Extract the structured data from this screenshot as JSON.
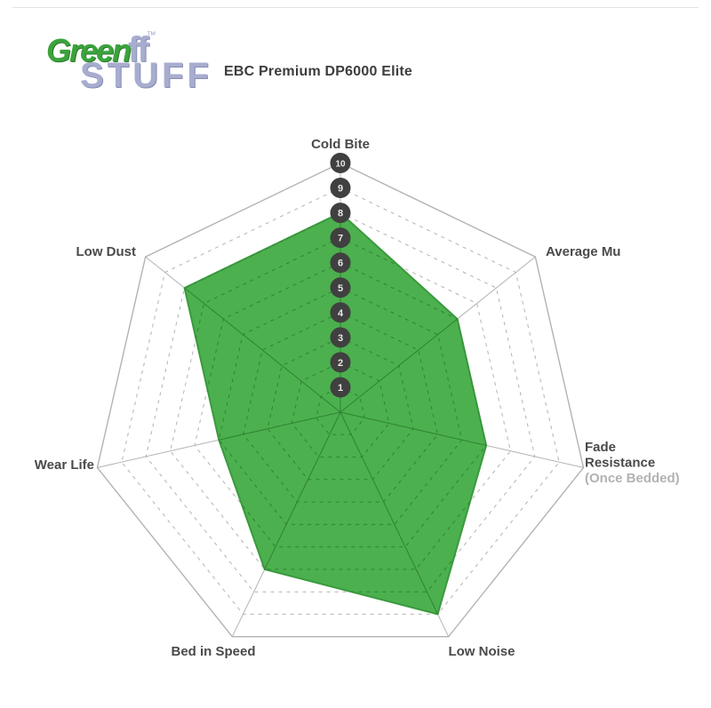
{
  "logo": {
    "green": "Green",
    "overlap": "ff",
    "tm": "™",
    "stuff": "STUFF"
  },
  "title": "EBC Premium DP6000 Elite",
  "chart_data": {
    "type": "radar",
    "title": "EBC Premium DP6000 Elite",
    "max": 10,
    "scale_ticks": [
      1,
      2,
      3,
      4,
      5,
      6,
      7,
      8,
      9,
      10
    ],
    "axes": [
      {
        "label": "Cold Bite",
        "value": 8
      },
      {
        "label": "Average Mu",
        "value": 6
      },
      {
        "label": "Fade Resistance",
        "sublabel": "(Once Bedded)",
        "value": 6
      },
      {
        "label": "Low Noise",
        "value": 9
      },
      {
        "label": "Bed in Speed",
        "value": 7
      },
      {
        "label": "Wear Life",
        "value": 5
      },
      {
        "label": "Low Dust",
        "value": 8
      }
    ],
    "layout": {
      "grid": true,
      "rings": "dashed",
      "outer_ring": "solid",
      "scale_on_axis": "Cold Bite"
    },
    "colors": {
      "fill": "#4cb04e",
      "stroke": "#3a9a3e",
      "grid": "#b3b3b3",
      "grid_inside": "#2f8233",
      "badge": "#404040",
      "badge_text": "#e9e9e9",
      "label": "#4a4a4a",
      "sublabel": "#b2b2b2"
    }
  }
}
